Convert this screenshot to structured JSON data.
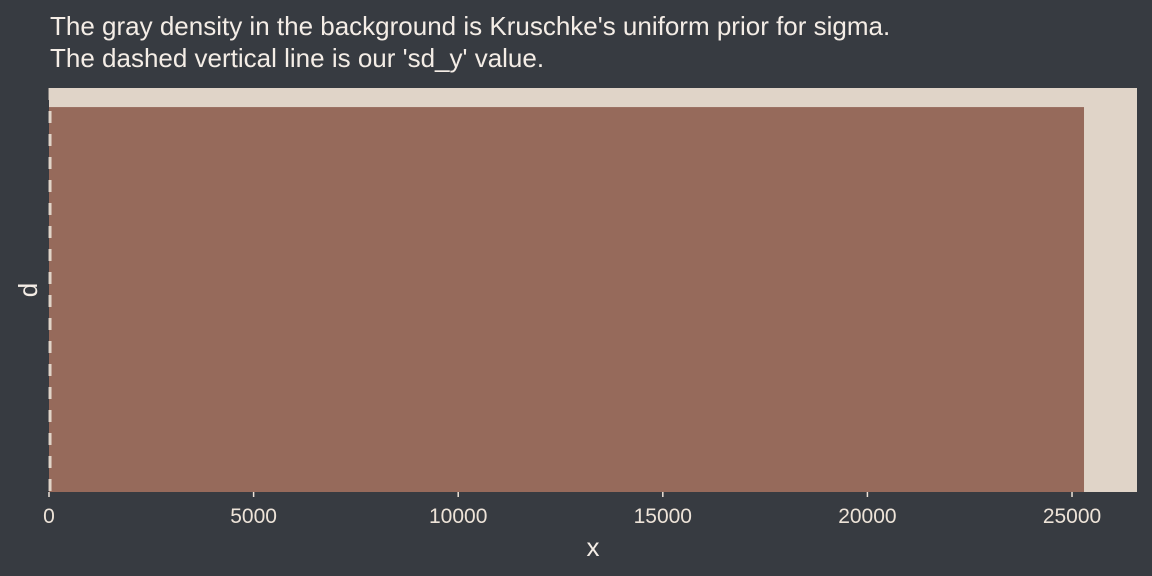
{
  "chart_data": {
    "type": "area",
    "title_lines": [
      "The gray density in the background is Kruschke's uniform prior for sigma.",
      "The dashed vertical line is our 'sd_y' value."
    ],
    "xlabel": "x",
    "ylabel": "d",
    "xlim": [
      0,
      26588
    ],
    "ylim": [
      0,
      4.15e-05
    ],
    "x_ticks": [
      0,
      5000,
      10000,
      15000,
      20000,
      25000
    ],
    "x_tick_labels": [
      "0",
      "5000",
      "10000",
      "15000",
      "20000",
      "25000"
    ],
    "y_ticks_shown": false,
    "grid": false,
    "uniform_prior": {
      "lower": 0.0253,
      "upper": 25293,
      "density": 3.954e-05
    },
    "sd_y_line": {
      "x": 25.3,
      "style": "dashed"
    },
    "colors": {
      "background": "#373b41",
      "panel": "#e0d4c8",
      "prior_fill": "#966a5b",
      "dashed_line": "#e0d4c8",
      "text": "#ede3d8"
    }
  }
}
